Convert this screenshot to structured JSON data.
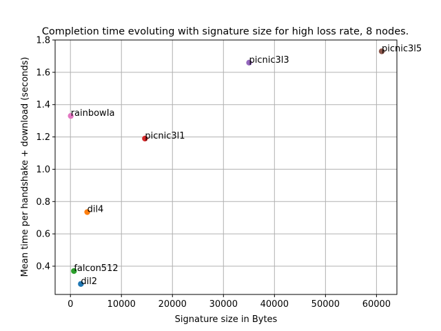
{
  "chart_data": {
    "type": "scatter",
    "title": "Completion time evoluting with signature size for high loss rate, 8 nodes.",
    "xlabel": "Signature size in Bytes",
    "ylabel": "Mean time per handshake + download (seconds)",
    "xlim": [
      -3000,
      64000
    ],
    "ylim": [
      0.225,
      1.8
    ],
    "grid": true,
    "xticks": [
      0,
      10000,
      20000,
      30000,
      40000,
      50000,
      60000
    ],
    "xtick_labels": [
      "0",
      "10000",
      "20000",
      "30000",
      "40000",
      "50000",
      "60000"
    ],
    "yticks": [
      0.4,
      0.6,
      0.8,
      1.0,
      1.2,
      1.4,
      1.6,
      1.8
    ],
    "ytick_labels": [
      "0.4",
      "0.6",
      "0.8",
      "1.0",
      "1.2",
      "1.4",
      "1.6",
      "1.8"
    ],
    "points": [
      {
        "label": "dil2",
        "x": 2044,
        "y": 0.29,
        "color": "#1f77b4"
      },
      {
        "label": "dil4",
        "x": 3293,
        "y": 0.735,
        "color": "#ff7f0e"
      },
      {
        "label": "falcon512",
        "x": 690,
        "y": 0.37,
        "color": "#2ca02c"
      },
      {
        "label": "picnic3l1",
        "x": 14612,
        "y": 1.19,
        "color": "#d62728"
      },
      {
        "label": "picnic3l3",
        "x": 35028,
        "y": 1.66,
        "color": "#9467bd"
      },
      {
        "label": "picnic3l5",
        "x": 61028,
        "y": 1.73,
        "color": "#8c564b"
      },
      {
        "label": "rainbowIa",
        "x": 66,
        "y": 1.33,
        "color": "#e377c2"
      }
    ]
  }
}
